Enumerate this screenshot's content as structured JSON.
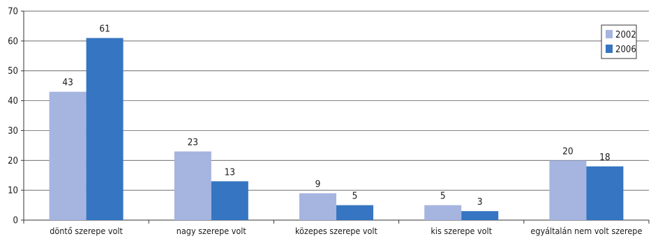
{
  "chart_data": {
    "type": "bar",
    "categories": [
      "döntő szerepe volt",
      "nagy szerepe volt",
      "közepes szerepe volt",
      "kis szerepe volt",
      "egyáltalán nem volt szerepe"
    ],
    "series": [
      {
        "name": "2002",
        "values": [
          43,
          23,
          9,
          5,
          20
        ],
        "color": "#a6b4e0"
      },
      {
        "name": "2006",
        "values": [
          61,
          13,
          5,
          3,
          18
        ],
        "color": "#3575c1"
      }
    ],
    "ylim": [
      0,
      70
    ],
    "yticks": [
      0,
      10,
      20,
      30,
      40,
      50,
      60,
      70
    ],
    "grid": true,
    "data_labels": true,
    "legend_position": "top-right"
  }
}
